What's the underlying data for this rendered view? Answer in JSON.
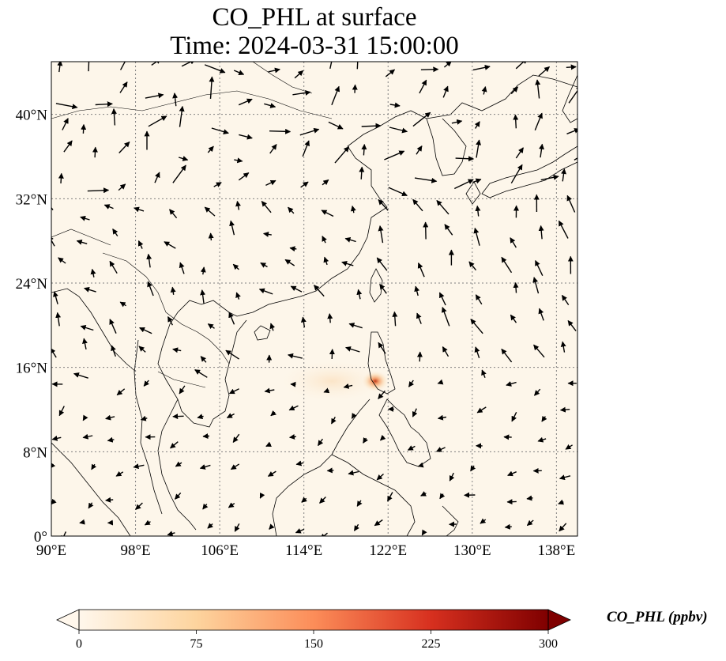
{
  "title": {
    "line1": "CO_PHL at surface",
    "line2": "Time: 2024-03-31 15:00:00"
  },
  "map": {
    "lon_range": [
      90,
      140
    ],
    "lat_range": [
      0,
      45
    ],
    "lon_ticks": [
      "90°E",
      "98°E",
      "106°E",
      "114°E",
      "122°E",
      "130°E",
      "138°E"
    ],
    "lat_ticks": [
      "0°",
      "8°N",
      "16°N",
      "24°N",
      "32°N",
      "40°N"
    ],
    "gridlines": true,
    "grid_style": "dotted",
    "plume": {
      "center_lon": 120.8,
      "center_lat": 14.6,
      "peak_ppbv": 180
    }
  },
  "colorbar": {
    "label": "CO_PHL (ppbv)",
    "min": 0,
    "max": 300,
    "ticks": [
      "0",
      "75",
      "150",
      "225",
      "300"
    ],
    "colormap": [
      "#fff7ec",
      "#fdd49e",
      "#fc8d59",
      "#d7301f",
      "#7f0000"
    ],
    "extend": "both"
  },
  "colors": {
    "background_field": "#fdf6ea",
    "coastline": "#000000",
    "grid": "#808080",
    "wind_arrow": "#000000"
  }
}
